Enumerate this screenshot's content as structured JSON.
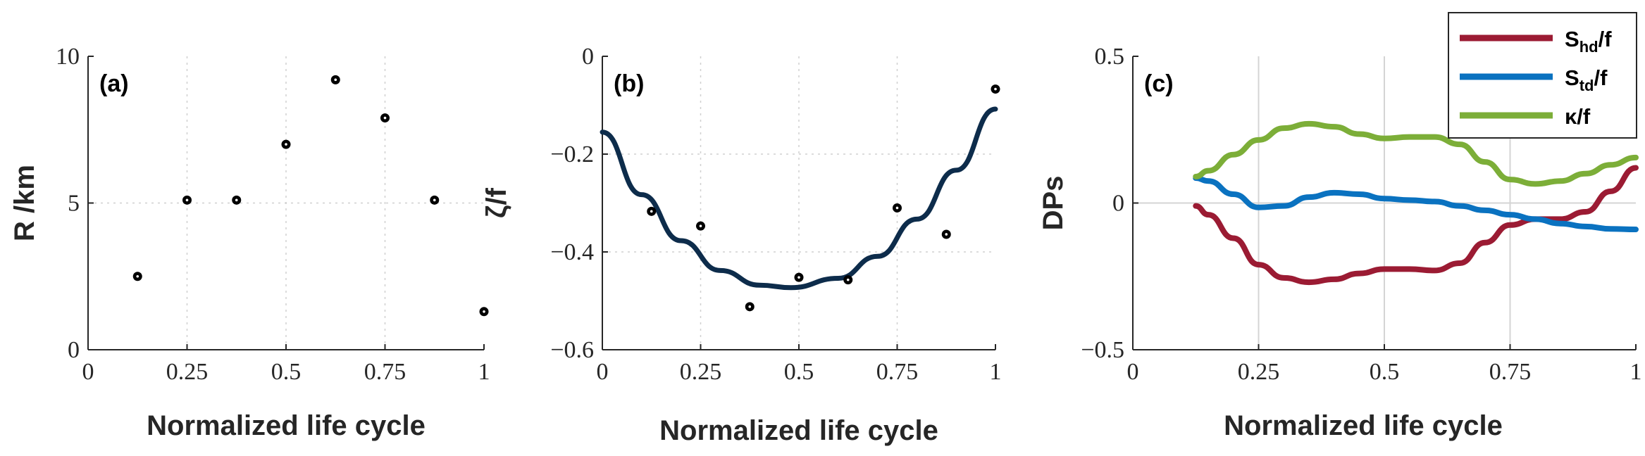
{
  "chart_data": [
    {
      "type": "scatter",
      "panel_label": "(a)",
      "xlabel": "Normalized life cycle",
      "ylabel": "R /km",
      "xlim": [
        0,
        1
      ],
      "ylim": [
        0,
        10
      ],
      "xticks": [
        0,
        0.25,
        0.5,
        0.75,
        1
      ],
      "xtick_labels": [
        "0",
        "0.25",
        "0.5",
        "0.75",
        "1"
      ],
      "yticks": [
        0,
        5,
        10
      ],
      "ytick_labels": [
        "0",
        "5",
        "10"
      ],
      "grid": "dotted",
      "points": [
        {
          "x": 0.125,
          "y": 2.5
        },
        {
          "x": 0.25,
          "y": 5.1
        },
        {
          "x": 0.375,
          "y": 5.1
        },
        {
          "x": 0.5,
          "y": 7.0
        },
        {
          "x": 0.625,
          "y": 9.2
        },
        {
          "x": 0.75,
          "y": 7.9
        },
        {
          "x": 0.875,
          "y": 5.1
        },
        {
          "x": 1.0,
          "y": 1.3
        }
      ]
    },
    {
      "type": "scatter",
      "panel_label": "(b)",
      "xlabel": "Normalized life cycle",
      "ylabel": "ζ/f",
      "xlim": [
        0,
        1
      ],
      "ylim": [
        -0.6,
        0
      ],
      "xticks": [
        0,
        0.25,
        0.5,
        0.75,
        1
      ],
      "xtick_labels": [
        "0",
        "0.25",
        "0.5",
        "0.75",
        "1"
      ],
      "yticks": [
        -0.6,
        -0.4,
        -0.2,
        0
      ],
      "ytick_labels": [
        "−0.6",
        "−0.4",
        "−0.2",
        "0"
      ],
      "grid": "dotted",
      "points": [
        {
          "x": 0.125,
          "y": -0.317
        },
        {
          "x": 0.25,
          "y": -0.347
        },
        {
          "x": 0.375,
          "y": -0.512
        },
        {
          "x": 0.5,
          "y": -0.452
        },
        {
          "x": 0.625,
          "y": -0.457
        },
        {
          "x": 0.75,
          "y": -0.31
        },
        {
          "x": 0.875,
          "y": -0.364
        },
        {
          "x": 1.0,
          "y": -0.067
        }
      ],
      "fit_curve": {
        "color": "#0d2c4b",
        "x": [
          0,
          0.1,
          0.2,
          0.3,
          0.4,
          0.48,
          0.6,
          0.7,
          0.8,
          0.9,
          1.0
        ],
        "y": [
          -0.155,
          -0.283,
          -0.377,
          -0.438,
          -0.468,
          -0.473,
          -0.454,
          -0.409,
          -0.333,
          -0.233,
          -0.108
        ]
      }
    },
    {
      "type": "line",
      "panel_label": "(c)",
      "xlabel": "Normalized life cycle",
      "ylabel": "DPs",
      "xlim": [
        0,
        1
      ],
      "ylim": [
        -0.5,
        0.5
      ],
      "xticks": [
        0,
        0.25,
        0.5,
        0.75,
        1
      ],
      "xtick_labels": [
        "0",
        "0.25",
        "0.5",
        "0.75",
        "1"
      ],
      "yticks": [
        -0.5,
        0,
        0.5
      ],
      "ytick_labels": [
        "−0.5",
        "0",
        "0.5"
      ],
      "grid": "solid",
      "legend_position": "top-right",
      "series": [
        {
          "name_main": "S",
          "name_sub": "hd",
          "name_tail": "/f",
          "color": "#9b1b33",
          "x": [
            0.125,
            0.15,
            0.2,
            0.25,
            0.3,
            0.35,
            0.4,
            0.45,
            0.5,
            0.55,
            0.6,
            0.65,
            0.7,
            0.75,
            0.8,
            0.85,
            0.9,
            0.95,
            1.0
          ],
          "y": [
            -0.01,
            -0.04,
            -0.12,
            -0.21,
            -0.255,
            -0.27,
            -0.26,
            -0.24,
            -0.225,
            -0.225,
            -0.23,
            -0.205,
            -0.135,
            -0.075,
            -0.055,
            -0.055,
            -0.03,
            0.04,
            0.12
          ]
        },
        {
          "name_main": "S",
          "name_sub": "td",
          "name_tail": "/f",
          "color": "#0a72c0",
          "x": [
            0.125,
            0.15,
            0.2,
            0.25,
            0.3,
            0.35,
            0.4,
            0.45,
            0.5,
            0.55,
            0.6,
            0.65,
            0.7,
            0.75,
            0.8,
            0.85,
            0.9,
            0.95,
            1.0
          ],
          "y": [
            0.085,
            0.075,
            0.03,
            -0.015,
            -0.01,
            0.02,
            0.035,
            0.03,
            0.015,
            0.01,
            0.005,
            -0.01,
            -0.025,
            -0.04,
            -0.055,
            -0.07,
            -0.08,
            -0.088,
            -0.09
          ]
        },
        {
          "name_main": "κ",
          "name_sub": "",
          "name_tail": "/f",
          "color": "#7cae38",
          "x": [
            0.125,
            0.15,
            0.2,
            0.25,
            0.3,
            0.35,
            0.4,
            0.45,
            0.5,
            0.55,
            0.6,
            0.65,
            0.7,
            0.75,
            0.8,
            0.85,
            0.9,
            0.95,
            1.0
          ],
          "y": [
            0.09,
            0.11,
            0.165,
            0.215,
            0.255,
            0.27,
            0.26,
            0.235,
            0.22,
            0.225,
            0.225,
            0.2,
            0.14,
            0.08,
            0.065,
            0.075,
            0.1,
            0.13,
            0.155
          ]
        }
      ]
    }
  ]
}
